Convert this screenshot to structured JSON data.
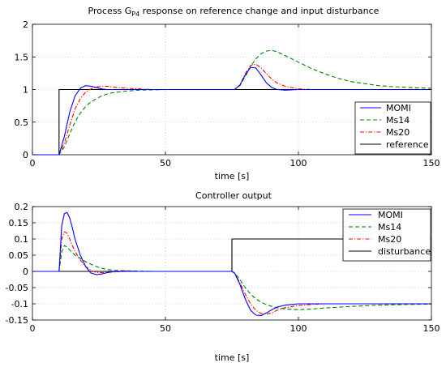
{
  "chart_data": [
    {
      "type": "line",
      "title_parts": [
        "Process G",
        "P4",
        " response on reference change and input disturbance"
      ],
      "xlabel": "time [s]",
      "ylabel": "",
      "xlim": [
        0,
        150
      ],
      "ylim": [
        0,
        2
      ],
      "xticks": [
        "0",
        "50",
        "100",
        "150"
      ],
      "yticks": [
        "0",
        "0.5",
        "1",
        "1.5",
        "2"
      ],
      "grid": true,
      "legend_position": "bottom-right",
      "x": [
        0,
        10,
        10.01,
        12,
        14,
        16,
        18,
        20,
        22,
        24,
        26,
        28,
        30,
        32,
        35,
        40,
        45,
        50,
        55,
        60,
        65,
        70,
        75,
        76,
        78,
        80,
        82,
        84,
        86,
        88,
        90,
        92,
        95,
        100,
        105,
        110,
        115,
        120,
        125,
        130,
        135,
        140,
        145,
        150
      ],
      "series": [
        {
          "name": "MOMI",
          "color": "#0000ff",
          "dash": "",
          "values": [
            0,
            0,
            0,
            0.28,
            0.65,
            0.9,
            1.02,
            1.06,
            1.05,
            1.03,
            1.01,
            1.0,
            1.0,
            1.0,
            1.0,
            1.0,
            1.0,
            1.0,
            1.0,
            1.0,
            1.0,
            1.0,
            1.0,
            1.0,
            1.07,
            1.22,
            1.34,
            1.33,
            1.22,
            1.1,
            1.03,
            1.0,
            0.99,
            1.0,
            1.0,
            1.0,
            1.0,
            1.0,
            1.0,
            1.0,
            1.0,
            1.0,
            1.0,
            1.0
          ]
        },
        {
          "name": "Ms14",
          "color": "#008000",
          "dash": "5 3",
          "values": [
            0,
            0,
            0,
            0.12,
            0.32,
            0.5,
            0.64,
            0.74,
            0.81,
            0.86,
            0.9,
            0.93,
            0.95,
            0.96,
            0.975,
            0.99,
            0.995,
            1.0,
            1.0,
            1.0,
            1.0,
            1.0,
            1.0,
            1.0,
            1.06,
            1.2,
            1.35,
            1.47,
            1.55,
            1.59,
            1.6,
            1.58,
            1.52,
            1.42,
            1.32,
            1.24,
            1.17,
            1.12,
            1.09,
            1.06,
            1.045,
            1.035,
            1.025,
            1.02
          ]
        },
        {
          "name": "Ms20",
          "color": "#ff0000",
          "dash": "5 2 1.2 2",
          "values": [
            0,
            0,
            0,
            0.18,
            0.45,
            0.7,
            0.86,
            0.96,
            1.01,
            1.04,
            1.05,
            1.05,
            1.04,
            1.03,
            1.02,
            1.01,
            1.0,
            1.0,
            1.0,
            1.0,
            1.0,
            1.0,
            1.0,
            1.0,
            1.07,
            1.24,
            1.37,
            1.39,
            1.33,
            1.24,
            1.16,
            1.1,
            1.05,
            1.01,
            1.0,
            1.0,
            1.0,
            1.0,
            1.0,
            1.0,
            1.0,
            1.0,
            1.0,
            1.0
          ]
        },
        {
          "name": "reference",
          "color": "#000000",
          "dash": "",
          "values": [
            0,
            0,
            1,
            1,
            1,
            1,
            1,
            1,
            1,
            1,
            1,
            1,
            1,
            1,
            1,
            1,
            1,
            1,
            1,
            1,
            1,
            1,
            1,
            1,
            1,
            1,
            1,
            1,
            1,
            1,
            1,
            1,
            1,
            1,
            1,
            1,
            1,
            1,
            1,
            1,
            1,
            1,
            1,
            1
          ]
        }
      ]
    },
    {
      "type": "line",
      "title_parts": [
        "Controller output"
      ],
      "xlabel": "time [s]",
      "ylabel": "",
      "xlim": [
        0,
        150
      ],
      "ylim": [
        -0.15,
        0.2
      ],
      "xticks": [
        "0",
        "50",
        "100",
        "150"
      ],
      "yticks": [
        "-0.15",
        "-0.1",
        "-0.05",
        "0",
        "0.05",
        "0.1",
        "0.15",
        "0.2"
      ],
      "grid": true,
      "legend_position": "top-right",
      "x": [
        0,
        10,
        10.01,
        11,
        12,
        13,
        14,
        15,
        16,
        18,
        20,
        22,
        24,
        26,
        28,
        30,
        35,
        40,
        45,
        50,
        60,
        70,
        75,
        75.01,
        76,
        78,
        80,
        82,
        84,
        86,
        88,
        90,
        92,
        95,
        100,
        105,
        110,
        120,
        130,
        140,
        150
      ],
      "series": [
        {
          "name": "MOMI",
          "color": "#0000ff",
          "dash": "",
          "values": [
            0,
            0,
            0,
            0.14,
            0.178,
            0.182,
            0.165,
            0.135,
            0.1,
            0.05,
            0.015,
            -0.005,
            -0.01,
            -0.008,
            -0.004,
            -0.001,
            0.001,
            0.0,
            0.0,
            0.0,
            0.0,
            0.0,
            0.0,
            0.0,
            -0.005,
            -0.04,
            -0.085,
            -0.12,
            -0.135,
            -0.136,
            -0.128,
            -0.118,
            -0.11,
            -0.104,
            -0.1,
            -0.1,
            -0.1,
            -0.1,
            -0.1,
            -0.1,
            -0.1
          ]
        },
        {
          "name": "Ms14",
          "color": "#008000",
          "dash": "5 3",
          "values": [
            0,
            0,
            0,
            0.06,
            0.08,
            0.075,
            0.066,
            0.058,
            0.05,
            0.04,
            0.03,
            0.022,
            0.015,
            0.01,
            0.006,
            0.004,
            0.002,
            0.001,
            0.0,
            0.0,
            0.0,
            0.0,
            0.0,
            0.0,
            -0.005,
            -0.025,
            -0.05,
            -0.07,
            -0.085,
            -0.095,
            -0.103,
            -0.108,
            -0.112,
            -0.116,
            -0.118,
            -0.116,
            -0.113,
            -0.108,
            -0.104,
            -0.102,
            -0.101
          ]
        },
        {
          "name": "Ms20",
          "color": "#ff0000",
          "dash": "5 2 1.2 2",
          "values": [
            0,
            0,
            0,
            0.1,
            0.122,
            0.118,
            0.1,
            0.08,
            0.062,
            0.035,
            0.015,
            0.003,
            -0.003,
            -0.004,
            -0.003,
            -0.002,
            0.0,
            0.0,
            0.0,
            0.0,
            0.0,
            0.0,
            0.0,
            0.0,
            -0.005,
            -0.035,
            -0.07,
            -0.1,
            -0.12,
            -0.13,
            -0.132,
            -0.128,
            -0.12,
            -0.112,
            -0.105,
            -0.102,
            -0.1,
            -0.1,
            -0.1,
            -0.1,
            -0.1
          ]
        },
        {
          "name": "disturbance",
          "color": "#000000",
          "dash": "",
          "values": [
            0,
            0,
            0,
            0,
            0,
            0,
            0,
            0,
            0,
            0,
            0,
            0,
            0,
            0,
            0,
            0,
            0,
            0,
            0,
            0,
            0,
            0,
            0,
            0.1,
            0.1,
            0.1,
            0.1,
            0.1,
            0.1,
            0.1,
            0.1,
            0.1,
            0.1,
            0.1,
            0.1,
            0.1,
            0.1,
            0.1,
            0.1,
            0.1,
            0.1
          ]
        }
      ]
    }
  ]
}
